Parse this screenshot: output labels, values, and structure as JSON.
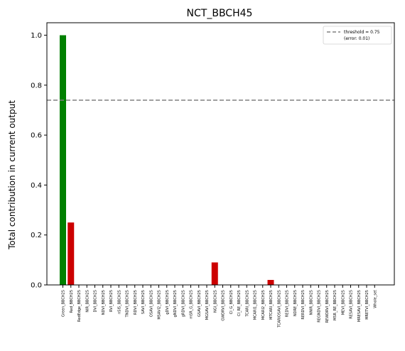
{
  "chart_data": {
    "type": "bar",
    "title": "NCT_BBCH45",
    "xlabel": "",
    "ylabel": "Total contribution in current output",
    "ylim": [
      0,
      1.05
    ],
    "yticks": [
      0.0,
      0.2,
      0.4,
      0.6,
      0.8,
      1.0
    ],
    "ytick_labels": [
      "0.0",
      "0.2",
      "0.4",
      "0.6",
      "0.8",
      "1.0"
    ],
    "categories": [
      "Green_BBCH25",
      "Red_BBCH25",
      "RedEdge_BBCH25",
      "NIR_BBCH25",
      "DVI_BBCH25",
      "NDVI_BBCH25",
      "RVI_BBCH25",
      "nSIS_BBCH25",
      "TNDVI_BBCH25",
      "RDVI_BBCH25",
      "SAVI_BBCH25",
      "OSAVI_BBCH25",
      "MSAVI2_BBCH25",
      "gDVI_BBCH25",
      "gNDVI_BBCH25",
      "gRDVI_BBCH25",
      "mSR_G_BBCH25",
      "GSAVI_BBCH25",
      "MGSAVI_BBCH25",
      "NGI_BBCH25",
      "GWDRVI_BBCH25",
      "CI_G_BBCH25",
      "CI_RE_BBCH25",
      "TCARI_BBCH25",
      "MCARI1_BBCH25",
      "MCARI2_BBCH25",
      "MTCARI_BBCH25",
      "TCARIOSAVI_BBCH25",
      "REDVI_BBCH25",
      "NDRE_BBCH25",
      "RERDVI_BBCH25",
      "NNIR_BBCH25",
      "REGNDVI_BBCH25",
      "REWDRVI_BBCH25",
      "MSR_RE_BBCH25",
      "MEVI_BBCH25",
      "RESAVI_BBCH25",
      "MRESAVI_BBCH25",
      "MRETVI_BBCH25",
      "Whole_set"
    ],
    "values": [
      1.0,
      0.25,
      0,
      0,
      0,
      0,
      0,
      0,
      0,
      0,
      0,
      0,
      0,
      0,
      0,
      0,
      0,
      0,
      0,
      0.09,
      0,
      0,
      0,
      0,
      0,
      0,
      0.02,
      0,
      0,
      0,
      0,
      0,
      0,
      0,
      0,
      0,
      0,
      0,
      0,
      0
    ],
    "colors": [
      "#008000",
      "#cc0000",
      "#cc0000",
      "#cc0000",
      "#cc0000",
      "#cc0000",
      "#cc0000",
      "#cc0000",
      "#cc0000",
      "#cc0000",
      "#cc0000",
      "#cc0000",
      "#cc0000",
      "#cc0000",
      "#cc0000",
      "#cc0000",
      "#cc0000",
      "#cc0000",
      "#cc0000",
      "#cc0000",
      "#cc0000",
      "#cc0000",
      "#cc0000",
      "#cc0000",
      "#cc0000",
      "#cc0000",
      "#cc0000",
      "#cc0000",
      "#cc0000",
      "#cc0000",
      "#cc0000",
      "#cc0000",
      "#cc0000",
      "#cc0000",
      "#cc0000",
      "#cc0000",
      "#cc0000",
      "#cc0000",
      "#cc0000",
      "#cc0000"
    ],
    "threshold": {
      "value": 0.74,
      "color": "#808080",
      "label_line1": "threshold = 0.75",
      "label_line2": "(error: 0.01)"
    },
    "legend_position": "top-right",
    "grid": false
  }
}
